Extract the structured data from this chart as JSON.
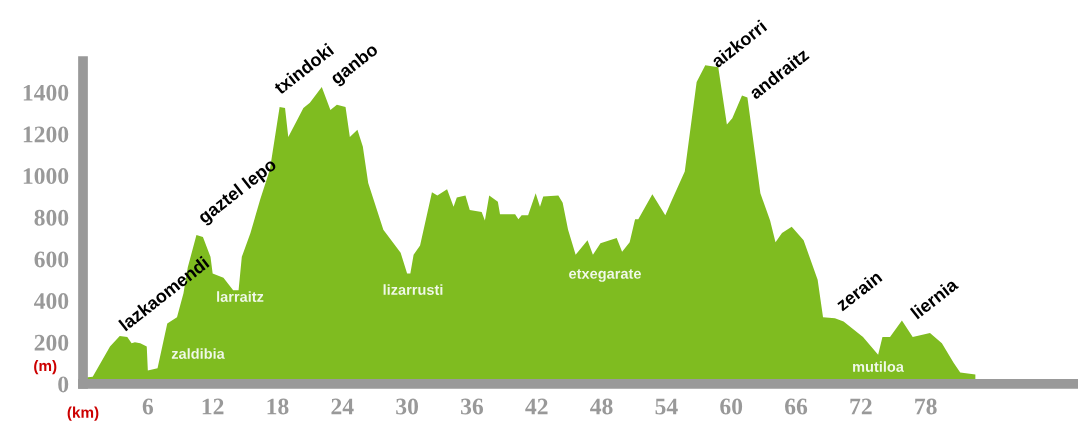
{
  "chart_data": {
    "type": "area",
    "xlabel": "(km)",
    "ylabel": "(m)",
    "x": [
      0,
      0.9,
      2.5,
      3.4,
      4.1,
      4.5,
      4.8,
      5.3,
      5.9,
      6.0,
      6.9,
      7.8,
      8.7,
      9.3,
      9.7,
      10.5,
      11.1,
      11.8,
      12.0,
      13.0,
      13.9,
      14.4,
      14.7,
      15.5,
      16.4,
      17.3,
      18.2,
      18.7,
      19.0,
      19.8,
      20.4,
      21.0,
      22.1,
      22.9,
      23.5,
      24.3,
      24.7,
      25.4,
      25.9,
      26.4,
      27.8,
      29.4,
      30.0,
      30.3,
      30.6,
      31.2,
      32.3,
      32.8,
      33.7,
      34.3,
      34.6,
      35.4,
      35.8,
      36.9,
      37.2,
      37.6,
      38.4,
      38.6,
      40.0,
      40.3,
      40.6,
      41.2,
      41.9,
      42.3,
      42.6,
      44.0,
      44.4,
      44.9,
      45.6,
      46.7,
      47.2,
      47.9,
      49.4,
      49.9,
      50.6,
      51.1,
      51.4,
      52.7,
      53.9,
      54.4,
      55.7,
      56.8,
      57.6,
      58.8,
      59.6,
      60.1,
      61.0,
      61.5,
      62.7,
      63.6,
      64.1,
      64.7,
      65.6,
      66.7,
      68.0,
      68.5,
      69.6,
      70.4,
      72.2,
      73.6,
      74.0,
      74.7,
      75.8,
      76.8,
      78.4,
      79.5,
      80.6,
      81.2,
      82.6
    ],
    "series": [
      {
        "color": "#7fbc20",
        "values": [
          30,
          35,
          180,
          230,
          225,
          195,
          200,
          195,
          180,
          65,
          75,
          290,
          320,
          435,
          560,
          715,
          705,
          610,
          530,
          510,
          450,
          450,
          610,
          725,
          885,
          1030,
          1330,
          1325,
          1185,
          1265,
          1325,
          1350,
          1425,
          1315,
          1340,
          1330,
          1185,
          1220,
          1140,
          965,
          740,
          630,
          530,
          530,
          620,
          665,
          920,
          905,
          935,
          850,
          895,
          905,
          835,
          825,
          785,
          905,
          875,
          815,
          815,
          790,
          810,
          810,
          915,
          850,
          900,
          905,
          870,
          740,
          620,
          690,
          620,
          675,
          700,
          635,
          680,
          790,
          790,
          910,
          810,
          870,
          1020,
          1450,
          1530,
          1520,
          1245,
          1275,
          1385,
          1375,
          915,
          785,
          680,
          725,
          755,
          690,
          500,
          320,
          315,
          300,
          225,
          140,
          225,
          225,
          305,
          225,
          245,
          195,
          100,
          55,
          45
        ]
      }
    ],
    "xlim": [
      0,
      92
    ],
    "ylim": [
      0,
      1550
    ],
    "xticks": [
      6,
      12,
      18,
      24,
      30,
      36,
      42,
      48,
      54,
      60,
      66,
      72,
      78
    ],
    "yticks": [
      0,
      200,
      400,
      600,
      800,
      1000,
      1200,
      1400
    ],
    "grid": false,
    "legend": false,
    "annotations": [
      "lazkaomendi",
      "gaztel lepo",
      "txindoki",
      "ganbo",
      "aizkorri",
      "andraitz",
      "zerain",
      "liernia",
      "zaldibia",
      "larraitz",
      "lizarrusti",
      "etxegarate",
      "mutiloa"
    ]
  }
}
